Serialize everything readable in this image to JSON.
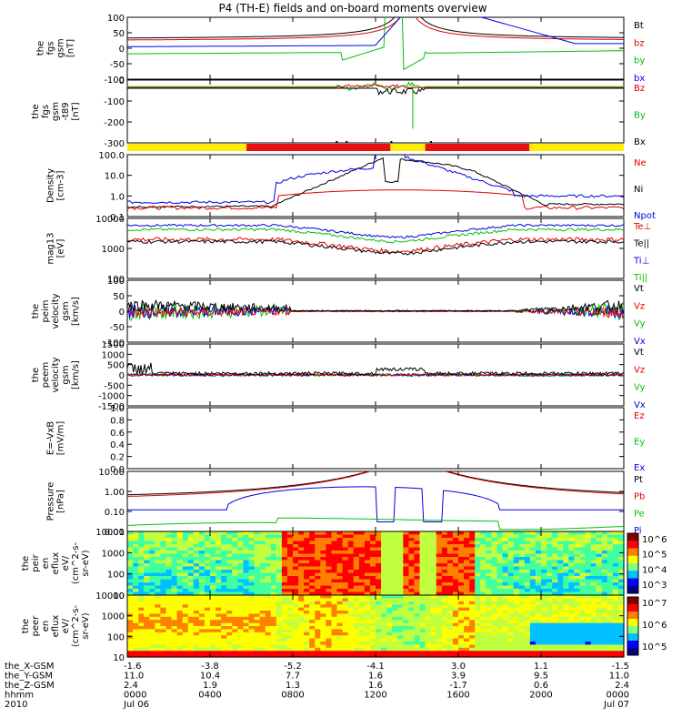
{
  "title": "P4 (TH-E) fields and on-board moments overview",
  "chart_data": [
    {
      "type": "line",
      "name": "fgs",
      "ylabel": [
        "the",
        "fgs",
        "gsm",
        "[nT]"
      ],
      "ylim": [
        -100,
        100
      ],
      "ticks": [
        "100",
        "50",
        "0",
        "-50",
        "-100"
      ],
      "legend": [
        {
          "label": "Bt",
          "color": "#000000"
        },
        {
          "label": "bz",
          "color": "#e00000"
        },
        {
          "label": "by",
          "color": "#00c000"
        },
        {
          "label": "bx",
          "color": "#0000e0"
        }
      ]
    },
    {
      "type": "line",
      "name": "fgs-dtrend",
      "ylabel": [
        "the",
        "fgs",
        "gsm",
        "-t89",
        "[nT]"
      ],
      "ylim": [
        -350,
        50
      ],
      "ticks": [
        "0",
        "-100",
        "-200",
        "-300"
      ],
      "legend": [
        {
          "label": "Bz",
          "color": "#e00000"
        },
        {
          "label": "By",
          "color": "#00c000"
        },
        {
          "label": "Bx",
          "color": "#000000"
        }
      ]
    },
    {
      "type": "bar",
      "name": "region-bar",
      "legend": []
    },
    {
      "type": "line",
      "name": "density",
      "ylabel": [
        "Density",
        "[cm-3]"
      ],
      "yscale": "log",
      "ylim": [
        0.1,
        100
      ],
      "ticks": [
        "100.0",
        "10.0",
        "1.0",
        "0.1"
      ],
      "legend": [
        {
          "label": "Ne",
          "color": "#e00000"
        },
        {
          "label": "Ni",
          "color": "#000000"
        },
        {
          "label": "Npot",
          "color": "#0000e0"
        }
      ]
    },
    {
      "type": "line",
      "name": "temperature",
      "ylabel": [
        "mag13",
        "[eV]"
      ],
      "yscale": "log",
      "ylim": [
        10,
        10000
      ],
      "ticks": [
        "10000",
        "1000",
        "100"
      ],
      "legend": [
        {
          "label": "Te⊥",
          "color": "#e00000"
        },
        {
          "label": "Te||",
          "color": "#000000"
        },
        {
          "label": "Ti⊥",
          "color": "#0000e0"
        },
        {
          "label": "Ti||",
          "color": "#00c000"
        }
      ]
    },
    {
      "type": "line",
      "name": "peim-velocity",
      "ylabel": [
        "the",
        "peim",
        "velocity",
        "gsm",
        "[km/s]"
      ],
      "ylim": [
        -100,
        100
      ],
      "ticks": [
        "100",
        "50",
        "0",
        "-50",
        "-100"
      ],
      "legend": [
        {
          "label": "Vt",
          "color": "#000000"
        },
        {
          "label": "Vz",
          "color": "#e00000"
        },
        {
          "label": "Vy",
          "color": "#00c000"
        },
        {
          "label": "Vx",
          "color": "#0000e0"
        }
      ]
    },
    {
      "type": "line",
      "name": "peem-velocity",
      "ylabel": [
        "the",
        "peem",
        "velocity",
        "gsm",
        "[km/s]"
      ],
      "ylim": [
        -1500,
        1500
      ],
      "ticks": [
        "1500",
        "1000",
        "500",
        "0",
        "-500",
        "-1000",
        "-1500"
      ],
      "legend": [
        {
          "label": "Vt",
          "color": "#000000"
        },
        {
          "label": "Vz",
          "color": "#e00000"
        },
        {
          "label": "Vy",
          "color": "#00c000"
        },
        {
          "label": "Vx",
          "color": "#0000e0"
        }
      ]
    },
    {
      "type": "line",
      "name": "E-VxB",
      "ylabel": [
        "E=-VxB",
        "[mV/m]"
      ],
      "ylim": [
        0,
        1
      ],
      "ticks": [
        "1.0",
        "0.8",
        "0.6",
        "0.4",
        "0.2",
        "0.0"
      ],
      "legend": [
        {
          "label": "Ez",
          "color": "#e00000"
        },
        {
          "label": "Ey",
          "color": "#00c000"
        },
        {
          "label": "Ex",
          "color": "#0000e0"
        }
      ]
    },
    {
      "type": "line",
      "name": "pressure",
      "ylabel": [
        "Pressure",
        "[nPa]"
      ],
      "yscale": "log",
      "ylim": [
        0.01,
        10
      ],
      "ticks": [
        "10.00",
        "1.00",
        "0.10",
        "0.01"
      ],
      "legend": [
        {
          "label": "Pt",
          "color": "#000000"
        },
        {
          "label": "Pb",
          "color": "#e00000"
        },
        {
          "label": "Pe",
          "color": "#00c000"
        },
        {
          "label": "Pi",
          "color": "#0000e0"
        }
      ]
    },
    {
      "type": "heatmap",
      "name": "peir-spectrogram",
      "ylabel": [
        "the",
        "peir",
        "en",
        "eflux",
        "eV/",
        "(cm^2-s-",
        "sr-eV)"
      ],
      "yscale": "log",
      "ticks": [
        "10000",
        "1000",
        "100",
        "10"
      ],
      "colorbar": [
        "10^6",
        "10^5",
        "10^4",
        "10^3"
      ]
    },
    {
      "type": "heatmap",
      "name": "peer-spectrogram",
      "ylabel": [
        "the",
        "peer",
        "en",
        "eflux",
        "eV/",
        "(cm^2-s-",
        "sr-eV)"
      ],
      "yscale": "log",
      "ticks": [
        "10000",
        "1000",
        "100",
        "10"
      ],
      "colorbar": [
        "10^7",
        "10^6",
        "10^5"
      ]
    }
  ],
  "xaxis": {
    "row_labels": [
      "the_X-GSM",
      "the_Y-GSM",
      "the_Z-GSM",
      "hhmm",
      "2010"
    ],
    "columns": [
      {
        "x": "-1.6",
        "y": "11.0",
        "z": "2.4",
        "t": "0000",
        "d": "Jul 06"
      },
      {
        "x": "-3.8",
        "y": "10.4",
        "z": "1.9",
        "t": "0400",
        "d": ""
      },
      {
        "x": "-5.2",
        "y": "7.7",
        "z": "1.3",
        "t": "0800",
        "d": ""
      },
      {
        "x": "-4.1",
        "y": "1.6",
        "z": "1.6",
        "t": "1200",
        "d": ""
      },
      {
        "x": "3.0",
        "y": "3.9",
        "z": "-1.7",
        "t": "1600",
        "d": ""
      },
      {
        "x": "1.1",
        "y": "9.5",
        "z": "0.6",
        "t": "2000",
        "d": ""
      },
      {
        "x": "-1.5",
        "y": "11.0",
        "z": "2.4",
        "t": "0000",
        "d": "Jul 07"
      }
    ]
  }
}
